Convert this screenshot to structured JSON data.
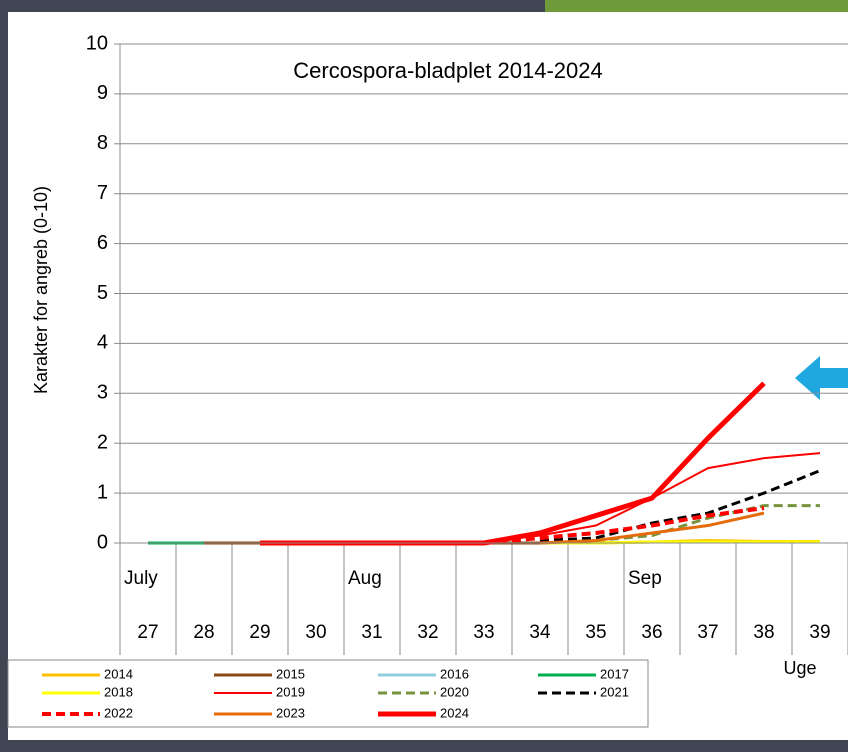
{
  "chart_data": {
    "type": "line",
    "title": "Cercospora-bladplet 2014-2024",
    "ylabel": "Karakter for angreb (0-10)",
    "xlabel": "Uge",
    "categories": [
      "27",
      "28",
      "29",
      "30",
      "31",
      "32",
      "33",
      "34",
      "35",
      "36",
      "37",
      "38",
      "39"
    ],
    "month_labels": [
      "July",
      null,
      null,
      null,
      "Aug",
      null,
      null,
      null,
      null,
      "Sep",
      null,
      null,
      null
    ],
    "ylim": [
      0,
      10
    ],
    "yticks": [
      0,
      1,
      2,
      3,
      4,
      5,
      6,
      7,
      8,
      9,
      10
    ],
    "grid": true,
    "series": [
      {
        "name": "2014",
        "color": "#ffc000",
        "dashed": false,
        "values": [
          null,
          null,
          null,
          null,
          null,
          null,
          null,
          0,
          0,
          0.02,
          0.05,
          0.03,
          0.03
        ]
      },
      {
        "name": "2015",
        "color": "#8b4a14",
        "dashed": false,
        "values": [
          null,
          0,
          0,
          0,
          0,
          0,
          0,
          0,
          null,
          null,
          null,
          null,
          null
        ]
      },
      {
        "name": "2016",
        "color": "#92cddc",
        "dashed": false,
        "values": [
          0,
          0,
          null,
          null,
          null,
          null,
          null,
          null,
          null,
          null,
          null,
          null,
          null
        ]
      },
      {
        "name": "2017",
        "color": "#00b050",
        "dashed": false,
        "values": [
          0,
          0,
          null,
          null,
          null,
          null,
          null,
          null,
          null,
          null,
          null,
          null,
          null
        ]
      },
      {
        "name": "2018",
        "color": "#ffff00",
        "dashed": false,
        "values": [
          null,
          null,
          null,
          null,
          null,
          null,
          null,
          0,
          0,
          0.02,
          0.02,
          0.02,
          0.02
        ]
      },
      {
        "name": "2019",
        "color": "#ff0000",
        "dashed": false,
        "values": [
          null,
          null,
          0,
          0,
          0,
          0,
          0.02,
          0.15,
          0.35,
          0.9,
          1.5,
          1.7,
          1.8
        ]
      },
      {
        "name": "2020",
        "color": "#77933c",
        "dashed": true,
        "values": [
          null,
          null,
          null,
          null,
          null,
          null,
          null,
          0,
          0.05,
          0.15,
          0.5,
          0.75,
          0.75
        ]
      },
      {
        "name": "2021",
        "color": "#000000",
        "dashed": true,
        "values": [
          null,
          null,
          null,
          null,
          null,
          null,
          null,
          0.05,
          0.1,
          0.4,
          0.6,
          1.0,
          1.45
        ]
      },
      {
        "name": "2022",
        "color": "#ff0000",
        "dashed": true,
        "values": [
          null,
          null,
          0,
          0,
          0,
          0,
          0,
          0.1,
          0.2,
          0.35,
          0.55,
          0.7,
          null
        ]
      },
      {
        "name": "2023",
        "color": "#e46c0a",
        "dashed": false,
        "values": [
          null,
          null,
          null,
          null,
          null,
          null,
          null,
          0,
          0.05,
          0.2,
          0.35,
          0.6,
          null
        ]
      },
      {
        "name": "2024",
        "color": "#ff0000",
        "dashed": false,
        "values": [
          null,
          null,
          0,
          0,
          0,
          0,
          0,
          0.2,
          0.55,
          0.9,
          2.1,
          3.2,
          null
        ]
      }
    ]
  }
}
